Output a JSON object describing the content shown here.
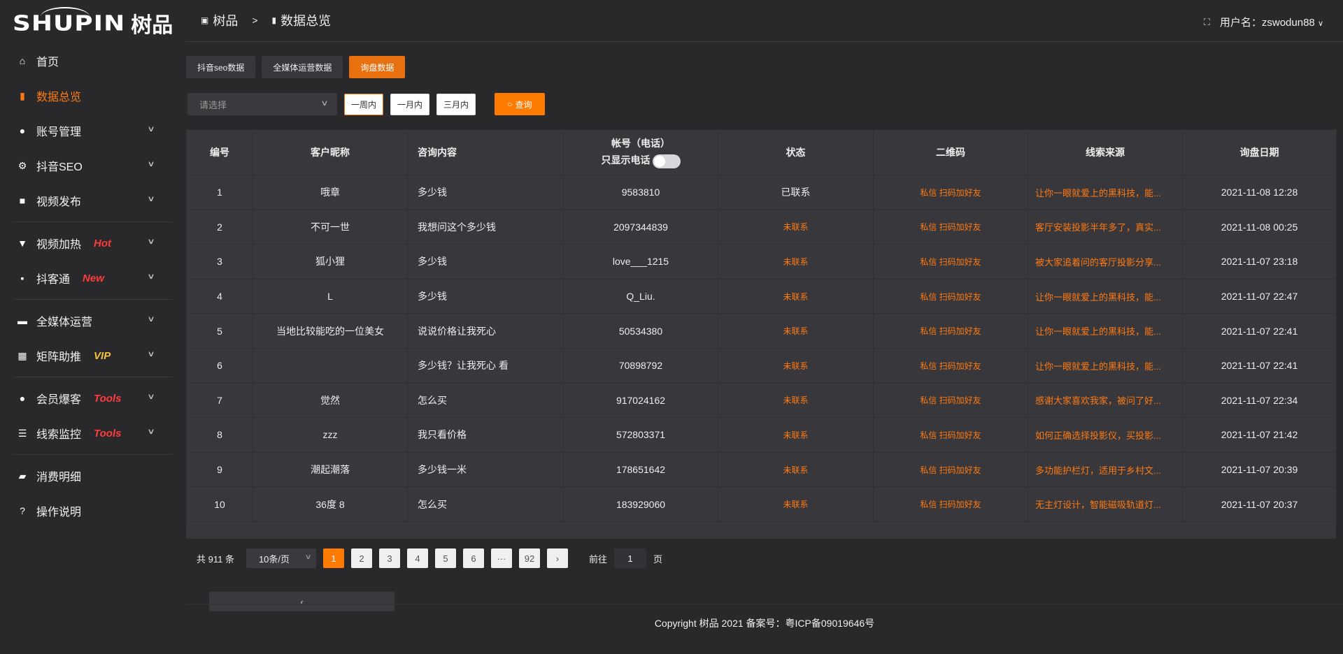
{
  "brand": {
    "logo_en": "SHUPIN",
    "logo_cn": "树品"
  },
  "sidebar": {
    "items": [
      {
        "label": "首页",
        "icon": "home-icon",
        "glyph": "⌂"
      },
      {
        "label": "数据总览",
        "icon": "bar-chart-icon",
        "glyph": "▮",
        "active": true
      },
      {
        "label": "账号管理",
        "icon": "user-icon",
        "glyph": "●",
        "chevron": true
      },
      {
        "label": "抖音SEO",
        "icon": "gear-icon",
        "glyph": "⚙",
        "chevron": true
      },
      {
        "label": "视频发布",
        "icon": "video-icon",
        "glyph": "■",
        "chevron": true
      },
      {
        "label": "视频加热",
        "icon": "billboard-icon",
        "glyph": "▼",
        "chevron": true,
        "tag": "Hot",
        "tag_color": "#ff3b3b"
      },
      {
        "label": "抖客通",
        "icon": "chat-icon",
        "glyph": "▪",
        "chevron": true,
        "tag": "New",
        "tag_color": "#ff3b3b"
      },
      {
        "label": "全媒体运营",
        "icon": "monitor-icon",
        "glyph": "▬",
        "chevron": true
      },
      {
        "label": "矩阵助推",
        "icon": "grid-icon",
        "glyph": "▦",
        "chevron": true,
        "tag": "VIP",
        "tag_color": "#f5c242"
      },
      {
        "label": "会员爆客",
        "icon": "member-icon",
        "glyph": "●",
        "chevron": true,
        "tag": "Tools",
        "tag_color": "#ff3b3b"
      },
      {
        "label": "线索监控",
        "icon": "sliders-icon",
        "glyph": "☰",
        "chevron": true,
        "tag": "Tools",
        "tag_color": "#ff3b3b"
      },
      {
        "label": "消费明细",
        "icon": "wallet-icon",
        "glyph": "▰"
      },
      {
        "label": "操作说明",
        "icon": "help-icon",
        "glyph": "?"
      }
    ]
  },
  "header": {
    "crumb_root": "树品",
    "crumb_sep": ">",
    "crumb_current": "数据总览",
    "user_label": "用户名：zswodun88",
    "fullscreen_icon": "fullscreen-icon"
  },
  "tabs": [
    {
      "label": "抖音seo数据"
    },
    {
      "label": "全媒体运营数据"
    },
    {
      "label": "询盘数据",
      "active": true
    }
  ],
  "filters": {
    "select_placeholder": "请选择",
    "periods": [
      "一周内",
      "一月内",
      "三月内"
    ],
    "active_period": "一周内",
    "query_label": "查询"
  },
  "table": {
    "headers": [
      "编号",
      "客户昵称",
      "咨询内容",
      "帐号（电话）",
      "状态",
      "二维码",
      "线索来源",
      "询盘日期"
    ],
    "phone_toggle_label": "只显示电话",
    "phone_toggle_on": false,
    "rows": [
      [
        "1",
        "哦章",
        "多少钱",
        "9583810",
        "已联系",
        "私信 扫码加好友",
        "让你一眼就爱上的黑科技，能...",
        "2021-11-08 12:28"
      ],
      [
        "2",
        "不可一世",
        "我想问这个多少钱",
        "2097344839",
        "未联系",
        "私信 扫码加好友",
        "客厅安装投影半年多了，真实...",
        "2021-11-08 00:25"
      ],
      [
        "3",
        "狐小狸",
        "多少钱",
        "love___1215",
        "未联系",
        "私信 扫码加好友",
        "被大家追着问的客厅投影分享...",
        "2021-11-07 23:18"
      ],
      [
        "4",
        "L",
        "多少钱",
        "Q_Liu.",
        "未联系",
        "私信 扫码加好友",
        "让你一眼就爱上的黑科技，能...",
        "2021-11-07 22:47"
      ],
      [
        "5",
        "当地比较能吃的一位美女",
        "说说价格让我死心",
        "50534380",
        "未联系",
        "私信 扫码加好友",
        "让你一眼就爱上的黑科技，能...",
        "2021-11-07 22:41"
      ],
      [
        "6",
        "",
        "多少钱？让我死心 看",
        "70898792",
        "未联系",
        "私信 扫码加好友",
        "让你一眼就爱上的黑科技，能...",
        "2021-11-07 22:41"
      ],
      [
        "7",
        "觉然",
        "怎么买",
        "917024162",
        "未联系",
        "私信 扫码加好友",
        "感谢大家喜欢我家，被问了好...",
        "2021-11-07 22:34"
      ],
      [
        "8",
        "zzz",
        "我只看价格",
        "572803371",
        "未联系",
        "私信 扫码加好友",
        "如何正确选择投影仪，买投影...",
        "2021-11-07 21:42"
      ],
      [
        "9",
        "潮起潮落",
        "多少钱一米",
        "178651642",
        "未联系",
        "私信 扫码加好友",
        "多功能护栏灯，适用于乡村文...",
        "2021-11-07 20:39"
      ],
      [
        "10",
        "36度 8",
        "怎么买",
        "183929060",
        "未联系",
        "私信 扫码加好友",
        "无主灯设计，智能磁吸轨道灯...",
        "2021-11-07 20:37"
      ]
    ]
  },
  "pagination": {
    "total_label": "共 911 条",
    "page_size": "10条/页",
    "pages": [
      "1",
      "2",
      "3",
      "4",
      "5",
      "6",
      "···",
      "92"
    ],
    "current": "1",
    "goto_label": "前往",
    "goto_value": "1",
    "page_suffix": "页"
  },
  "footer": {
    "text": "Copyright 树品 2021 备案号：粤ICP备09019646号"
  },
  "colors": {
    "accent": "#ff7a00",
    "background": "#29292c",
    "table": "#37373c"
  }
}
